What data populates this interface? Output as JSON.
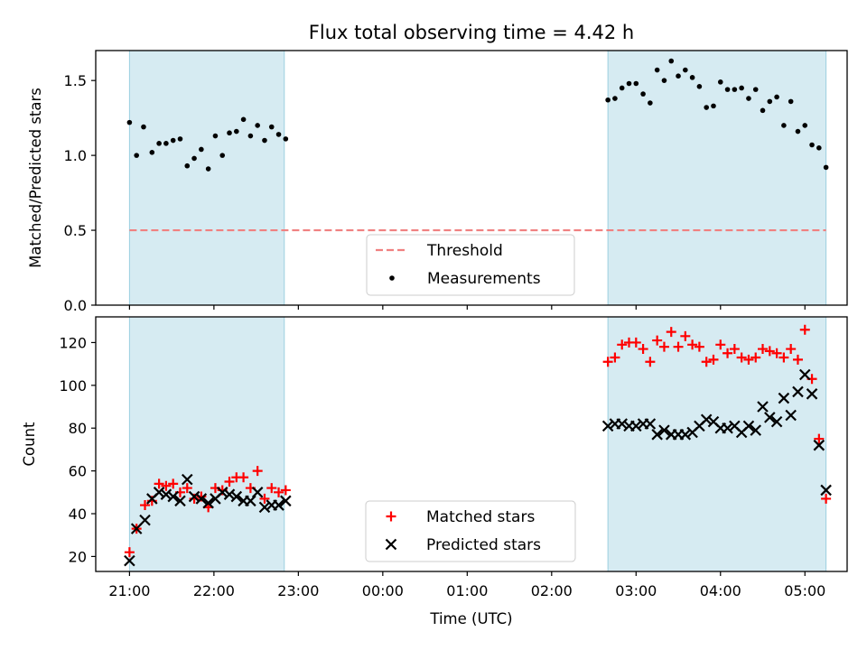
{
  "chart_data": [
    {
      "type": "scatter",
      "title": "Flux total observing time = 4.42 h",
      "xlabel": "",
      "ylabel": "Matched/Predicted stars",
      "ylim": [
        0,
        1.7
      ],
      "yticks": [
        0.0,
        0.5,
        1.0,
        1.5
      ],
      "ytick_labels": [
        "0.0",
        "0.5",
        "1.0",
        "1.5"
      ],
      "xlim_hours": [
        20.4,
        5.5
      ],
      "xticks": [
        "21:00",
        "22:00",
        "23:00",
        "00:00",
        "01:00",
        "02:00",
        "03:00",
        "04:00",
        "05:00"
      ],
      "observing_windows": [
        {
          "start": "21:00",
          "end": "22:50"
        },
        {
          "start": "02:40",
          "end": "05:15"
        }
      ],
      "threshold": {
        "name": "Threshold",
        "value": 0.5,
        "color": "#f08080",
        "style": "dashed"
      },
      "series": [
        {
          "name": "Measurements",
          "marker": "dot",
          "color": "#000000",
          "x": [
            "21:00",
            "21:05",
            "21:10",
            "21:16",
            "21:21",
            "21:26",
            "21:31",
            "21:36",
            "21:41",
            "21:46",
            "21:51",
            "21:56",
            "22:01",
            "22:06",
            "22:11",
            "22:16",
            "22:21",
            "22:26",
            "22:31",
            "22:36",
            "22:41",
            "22:46",
            "22:51",
            "02:40",
            "02:45",
            "02:50",
            "02:55",
            "03:00",
            "03:05",
            "03:10",
            "03:15",
            "03:20",
            "03:25",
            "03:30",
            "03:35",
            "03:40",
            "03:45",
            "03:50",
            "03:55",
            "04:00",
            "04:05",
            "04:10",
            "04:15",
            "04:20",
            "04:25",
            "04:30",
            "04:35",
            "04:40",
            "04:45",
            "04:50",
            "04:55",
            "05:00",
            "05:05",
            "05:10",
            "05:15"
          ],
          "y": [
            1.22,
            1.0,
            1.19,
            1.02,
            1.08,
            1.08,
            1.1,
            1.11,
            0.93,
            0.98,
            1.04,
            0.91,
            1.13,
            1.0,
            1.15,
            1.16,
            1.24,
            1.13,
            1.2,
            1.1,
            1.19,
            1.14,
            1.11,
            1.37,
            1.38,
            1.45,
            1.48,
            1.48,
            1.41,
            1.35,
            1.57,
            1.5,
            1.63,
            1.53,
            1.57,
            1.52,
            1.46,
            1.32,
            1.33,
            1.49,
            1.44,
            1.44,
            1.45,
            1.38,
            1.44,
            1.3,
            1.36,
            1.39,
            1.2,
            1.36,
            1.16,
            1.2,
            1.07,
            1.05,
            0.92
          ]
        }
      ]
    },
    {
      "type": "scatter",
      "title": "",
      "xlabel": "Time (UTC)",
      "ylabel": "Count",
      "ylim": [
        13,
        132
      ],
      "yticks": [
        20,
        40,
        60,
        80,
        100,
        120
      ],
      "ytick_labels": [
        "20",
        "40",
        "60",
        "80",
        "100",
        "120"
      ],
      "xticks": [
        "21:00",
        "22:00",
        "23:00",
        "00:00",
        "01:00",
        "02:00",
        "03:00",
        "04:00",
        "05:00"
      ],
      "series": [
        {
          "name": "Matched stars",
          "marker": "plus",
          "color": "#ff0000",
          "x": [
            "21:00",
            "21:05",
            "21:11",
            "21:16",
            "21:21",
            "21:26",
            "21:31",
            "21:36",
            "21:41",
            "21:46",
            "21:51",
            "21:56",
            "22:01",
            "22:06",
            "22:11",
            "22:16",
            "22:21",
            "22:26",
            "22:31",
            "22:36",
            "22:41",
            "22:46",
            "22:51",
            "02:40",
            "02:45",
            "02:50",
            "02:55",
            "03:00",
            "03:05",
            "03:10",
            "03:15",
            "03:20",
            "03:25",
            "03:30",
            "03:35",
            "03:40",
            "03:45",
            "03:50",
            "03:55",
            "04:00",
            "04:05",
            "04:10",
            "04:15",
            "04:20",
            "04:25",
            "04:30",
            "04:35",
            "04:40",
            "04:45",
            "04:50",
            "04:55",
            "05:00",
            "05:05",
            "05:10",
            "05:15"
          ],
          "y": [
            22,
            33,
            44,
            46,
            54,
            53,
            54,
            50,
            52,
            47,
            48,
            43,
            52,
            51,
            55,
            57,
            57,
            52,
            60,
            47,
            52,
            50,
            51,
            111,
            113,
            119,
            120,
            120,
            117,
            111,
            121,
            118,
            125,
            118,
            123,
            119,
            118,
            111,
            112,
            119,
            115,
            117,
            113,
            112,
            113,
            117,
            116,
            115,
            113,
            117,
            112,
            126,
            103,
            75,
            47
          ]
        },
        {
          "name": "Predicted stars",
          "marker": "x",
          "color": "#000000",
          "x": [
            "21:00",
            "21:05",
            "21:11",
            "21:16",
            "21:21",
            "21:26",
            "21:31",
            "21:36",
            "21:41",
            "21:46",
            "21:51",
            "21:56",
            "22:01",
            "22:06",
            "22:11",
            "22:16",
            "22:21",
            "22:26",
            "22:31",
            "22:36",
            "22:41",
            "22:46",
            "22:51",
            "02:40",
            "02:45",
            "02:50",
            "02:55",
            "03:00",
            "03:05",
            "03:10",
            "03:15",
            "03:20",
            "03:25",
            "03:30",
            "03:35",
            "03:40",
            "03:45",
            "03:50",
            "03:55",
            "04:00",
            "04:05",
            "04:10",
            "04:15",
            "04:20",
            "04:25",
            "04:30",
            "04:35",
            "04:40",
            "04:45",
            "04:50",
            "04:55",
            "05:00",
            "05:05",
            "05:10",
            "05:15"
          ],
          "y": [
            18,
            33,
            37,
            47,
            50,
            49,
            48,
            46,
            56,
            48,
            47,
            45,
            47,
            50,
            49,
            48,
            46,
            46,
            50,
            43,
            44,
            44,
            46,
            81,
            82,
            82,
            81,
            81,
            82,
            82,
            77,
            79,
            77,
            77,
            77,
            78,
            81,
            84,
            83,
            80,
            80,
            81,
            78,
            81,
            79,
            90,
            85,
            83,
            94,
            86,
            97,
            105,
            96,
            72,
            51
          ]
        }
      ]
    }
  ]
}
